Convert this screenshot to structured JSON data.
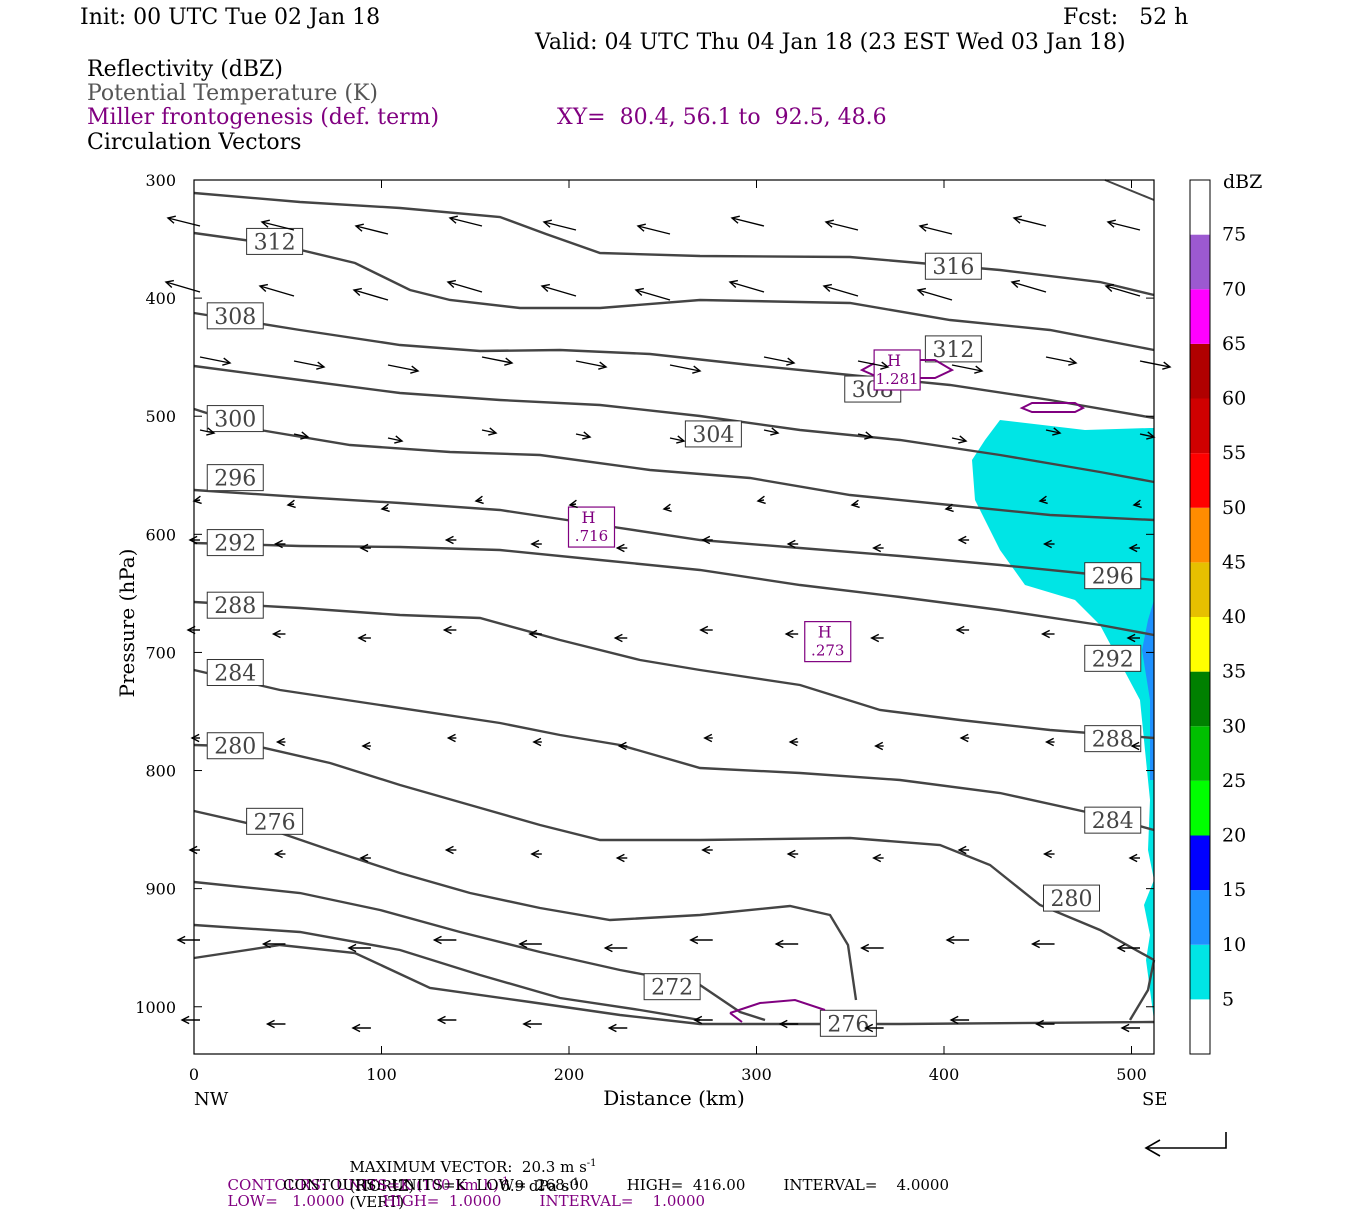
{
  "header": {
    "init": "Init: 00 UTC Tue 02 Jan 18",
    "fcst": "Fcst:   52 h",
    "valid": "Valid: 04 UTC Thu 04 Jan 18 (23 EST Wed 03 Jan 18)",
    "fields": {
      "reflectivity": "Reflectivity (dBZ)",
      "theta": "Potential Temperature (K)",
      "miller": "Miller frontogenesis (def. term)",
      "xy": "XY=  80.4, 56.1 to  92.5, 48.6",
      "vectors": "Circulation Vectors"
    }
  },
  "colors": {
    "theta_contour": "#444444",
    "frontogenesis": "#800080",
    "reflectivity_5_10": "#00e5e5",
    "reflectivity_10_15": "#1e90ff"
  },
  "chart_data": {
    "type": "cross-section",
    "xlabel": "Distance (km)",
    "ylabel": "Pressure (hPa)",
    "xlim": [
      0,
      512
    ],
    "ylim": [
      1040,
      300
    ],
    "x_ticks": [
      "0",
      "100",
      "200",
      "300",
      "400",
      "500"
    ],
    "y_ticks": [
      "300",
      "400",
      "500",
      "600",
      "700",
      "800",
      "900",
      "1000"
    ],
    "x_end_labels": {
      "left": "NW",
      "right": "SE"
    },
    "colorbar": {
      "title": "dBZ",
      "levels": [
        "5",
        "10",
        "15",
        "20",
        "25",
        "30",
        "35",
        "40",
        "45",
        "50",
        "55",
        "60",
        "65",
        "70",
        "75"
      ],
      "colors": [
        "#00e5e5",
        "#1e90ff",
        "#0000ff",
        "#00ff00",
        "#00c000",
        "#008000",
        "#ffff00",
        "#e6c000",
        "#ff8c00",
        "#ff0000",
        "#d00000",
        "#b00000",
        "#ff00ff",
        "#9c59d1",
        "#ffffff"
      ]
    },
    "theta_contour_labels": [
      {
        "text": "312",
        "x": 43,
        "p": 352
      },
      {
        "text": "316",
        "x": 405,
        "p": 373
      },
      {
        "text": "308",
        "x": 22,
        "p": 415
      },
      {
        "text": "312",
        "x": 405,
        "p": 443
      },
      {
        "text": "308",
        "x": 362,
        "p": 477
      },
      {
        "text": "300",
        "x": 22,
        "p": 502
      },
      {
        "text": "304",
        "x": 277,
        "p": 515
      },
      {
        "text": "296",
        "x": 22,
        "p": 552
      },
      {
        "text": "292",
        "x": 22,
        "p": 607
      },
      {
        "text": "296",
        "x": 490,
        "p": 635
      },
      {
        "text": "288",
        "x": 22,
        "p": 660
      },
      {
        "text": "284",
        "x": 22,
        "p": 717
      },
      {
        "text": "292",
        "x": 490,
        "p": 705
      },
      {
        "text": "288",
        "x": 490,
        "p": 773
      },
      {
        "text": "280",
        "x": 22,
        "p": 779
      },
      {
        "text": "276",
        "x": 43,
        "p": 843
      },
      {
        "text": "284",
        "x": 490,
        "p": 842
      },
      {
        "text": "280",
        "x": 468,
        "p": 908
      },
      {
        "text": "272",
        "x": 255,
        "p": 983
      },
      {
        "text": "276",
        "x": 349,
        "p": 1014
      }
    ],
    "frontogenesis_maxima": [
      {
        "label": "H",
        "value": "1.281",
        "x": 375,
        "p": 460
      },
      {
        "label": "H",
        "value": ".716",
        "x": 212,
        "p": 593
      },
      {
        "label": "H",
        "value": ".273",
        "x": 338,
        "p": 690
      }
    ],
    "units_contours_miller": "K (100 km h)",
    "units_contours_theta": "K"
  },
  "footer": {
    "max_vector": "MAXIMUM VECTOR:  20.3 m s",
    "max_vector_horiz": "(HORIZ)",
    "max_vector_vert": "6.9 dPa s",
    "max_vector_vert_suffix": "(VERT)",
    "sup_neg1": "-1",
    "contours_miller_prefix": "CONTOURS:  UNITS=K (100 km h)",
    "contours_miller_suffix": "LOW=   1.0000        HIGH=  1.0000        INTERVAL=    1.0000",
    "contours_theta": "CONTOURS:  UNITS=K  LOW=  268.00        HIGH=  416.00        INTERVAL=    4.0000"
  }
}
